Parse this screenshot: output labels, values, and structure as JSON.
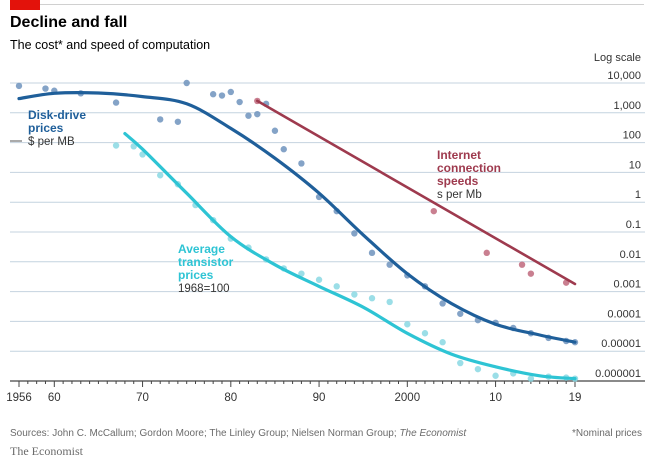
{
  "header": {
    "title": "Decline and fall",
    "subtitle": "The cost* and speed of computation"
  },
  "footer": {
    "sources_prefix": "Sources: John C. McCallum; Gordon Moore; The Linley Group; Nielsen Norman Group; ",
    "sources_italic": "The Economist",
    "footnote": "*Nominal prices",
    "brand": "The Economist"
  },
  "colors": {
    "accent": "#e3120b",
    "disk": "#1f5f9a",
    "disk_dots": "#6e93bd",
    "transistor": "#2ec4d4",
    "transistor_dots": "#8ad8e3",
    "internet": "#9e3a4e",
    "internet_dots": "#c0697c",
    "grid": "#c4d3df",
    "axis_text": "#333333"
  },
  "chart_data": {
    "type": "line",
    "log_scale": true,
    "scale_note": "Log scale",
    "xlim": [
      1955,
      2020
    ],
    "ylim": [
      1e-06,
      10000
    ],
    "x_ticks": [
      1956,
      1960,
      1970,
      1980,
      1990,
      2000,
      2010,
      2019
    ],
    "x_tick_labels": [
      "1956",
      "60",
      "70",
      "80",
      "90",
      "2000",
      "10",
      "19"
    ],
    "y_ticks": [
      10000,
      1000,
      100,
      10,
      1,
      0.1,
      0.01,
      0.001,
      0.0001,
      1e-05,
      1e-06
    ],
    "y_tick_labels": [
      "10,000",
      "1,000",
      "100",
      "10",
      "1",
      "0.1",
      "0.01",
      "0.001",
      "0.0001",
      "0.00001",
      "0.000001"
    ],
    "grid": true,
    "series": [
      {
        "name": "Disk-drive prices",
        "unit": "$ per MB",
        "trend": [
          [
            1956,
            3000
          ],
          [
            1960,
            4500
          ],
          [
            1965,
            4600
          ],
          [
            1970,
            3500
          ],
          [
            1975,
            2000
          ],
          [
            1980,
            300
          ],
          [
            1985,
            30
          ],
          [
            1990,
            2
          ],
          [
            1995,
            0.08
          ],
          [
            2000,
            0.004
          ],
          [
            2005,
            0.0004
          ],
          [
            2010,
            8e-05
          ],
          [
            2015,
            3.5e-05
          ],
          [
            2019,
            2e-05
          ]
        ],
        "points": [
          [
            1956,
            8000
          ],
          [
            1959,
            6500
          ],
          [
            1960,
            5500
          ],
          [
            1963,
            4500
          ],
          [
            1967,
            2200
          ],
          [
            1972,
            600
          ],
          [
            1974,
            500
          ],
          [
            1975,
            10000
          ],
          [
            1978,
            4200
          ],
          [
            1979,
            3800
          ],
          [
            1980,
            5000
          ],
          [
            1981,
            2300
          ],
          [
            1982,
            800
          ],
          [
            1983,
            900
          ],
          [
            1984,
            2000
          ],
          [
            1985,
            250
          ],
          [
            1986,
            60
          ],
          [
            1988,
            20
          ],
          [
            1990,
            1.5
          ],
          [
            1992,
            0.5
          ],
          [
            1994,
            0.09
          ],
          [
            1996,
            0.02
          ],
          [
            1998,
            0.008
          ],
          [
            2000,
            0.0035
          ],
          [
            2002,
            0.0015
          ],
          [
            2004,
            0.0004
          ],
          [
            2006,
            0.00018
          ],
          [
            2008,
            0.00011
          ],
          [
            2010,
            9e-05
          ],
          [
            2012,
            6e-05
          ],
          [
            2014,
            4e-05
          ],
          [
            2016,
            2.8e-05
          ],
          [
            2018,
            2.2e-05
          ],
          [
            2019,
            2e-05
          ]
        ]
      },
      {
        "name": "Average transistor prices",
        "unit": "1968=100",
        "trend": [
          [
            1968,
            200
          ],
          [
            1970,
            60
          ],
          [
            1975,
            2
          ],
          [
            1980,
            0.07
          ],
          [
            1985,
            0.008
          ],
          [
            1990,
            0.0015
          ],
          [
            1995,
            0.0003
          ],
          [
            2000,
            4e-05
          ],
          [
            2005,
            8e-06
          ],
          [
            2010,
            3e-06
          ],
          [
            2015,
            1.5e-06
          ],
          [
            2019,
            1.2e-06
          ]
        ],
        "points": [
          [
            1967,
            80
          ],
          [
            1969,
            75
          ],
          [
            1970,
            40
          ],
          [
            1972,
            8
          ],
          [
            1974,
            4
          ],
          [
            1976,
            0.8
          ],
          [
            1978,
            0.25
          ],
          [
            1980,
            0.06
          ],
          [
            1982,
            0.03
          ],
          [
            1984,
            0.012
          ],
          [
            1986,
            0.006
          ],
          [
            1988,
            0.004
          ],
          [
            1990,
            0.0025
          ],
          [
            1992,
            0.0015
          ],
          [
            1994,
            0.0008
          ],
          [
            1996,
            0.0006
          ],
          [
            1998,
            0.00045
          ],
          [
            2000,
            8e-05
          ],
          [
            2002,
            4e-05
          ],
          [
            2004,
            2e-05
          ],
          [
            2006,
            4e-06
          ],
          [
            2008,
            2.5e-06
          ],
          [
            2010,
            1.5e-06
          ],
          [
            2012,
            1.8e-06
          ],
          [
            2014,
            1.2e-06
          ],
          [
            2016,
            1.4e-06
          ],
          [
            2018,
            1.3e-06
          ],
          [
            2019,
            1.2e-06
          ]
        ]
      },
      {
        "name": "Internet connection speeds",
        "unit": "s per Mb",
        "trend": [
          [
            1983,
            2500
          ],
          [
            2019,
            0.0018
          ]
        ],
        "points": [
          [
            1983,
            2500
          ],
          [
            2003,
            0.5
          ],
          [
            2009,
            0.02
          ],
          [
            2013,
            0.008
          ],
          [
            2014,
            0.004
          ],
          [
            2018,
            0.002
          ]
        ]
      }
    ],
    "annotations": [
      {
        "series": 0,
        "label_lines": [
          "Disk-drive",
          "prices"
        ],
        "unit": "$ per MB"
      },
      {
        "series": 1,
        "label_lines": [
          "Average",
          "transistor",
          "prices"
        ],
        "unit": "1968=100"
      },
      {
        "series": 2,
        "label_lines": [
          "Internet",
          "connection",
          "speeds"
        ],
        "unit": "s per Mb"
      }
    ]
  }
}
